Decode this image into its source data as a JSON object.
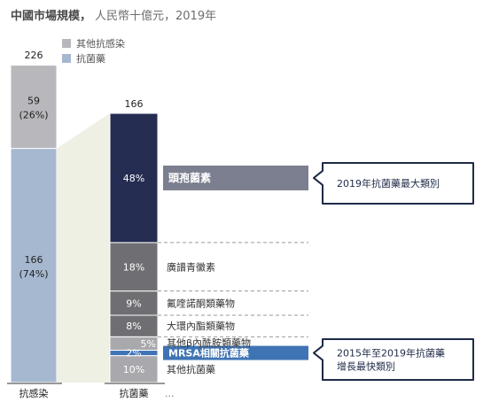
{
  "chart_data": {
    "type": "bar",
    "title": "中國市場規模，",
    "subtitle": "人民幣十億元，2019年",
    "colors": {
      "others": "#b7b7bc",
      "antibacterial": "#a6b8d0",
      "cephalosporin": "#252d52",
      "gray_seg": "#6f6f73",
      "light_seg": "#a8a8ad",
      "mrsa": "#3f74b4",
      "label_band": "#7b7f8f",
      "callout_border": "#1e2a48"
    },
    "legend": [
      {
        "name": "其他抗感染",
        "color": "#b7b7bc"
      },
      {
        "name": "抗菌藥",
        "color": "#a6b8d0"
      }
    ],
    "left_bar": {
      "label": "抗感染",
      "total": 226,
      "total_label": "226",
      "segments": [
        {
          "name": "抗菌藥",
          "value": 166,
          "label_value": "166",
          "label_pct": "(74%)"
        },
        {
          "name": "其他抗感染",
          "value": 59,
          "label_value": "59",
          "label_pct": "(26%)"
        }
      ]
    },
    "right_bar": {
      "label": "抗菌藥",
      "total": 166,
      "total_label": "166",
      "segments": [
        {
          "name": "其他抗菌藥",
          "pct": 10,
          "label": "10%"
        },
        {
          "name": "MRSA相關抗菌藥",
          "pct": 2,
          "label": "2%"
        },
        {
          "name": "其他β內酰胺類藥物",
          "pct": 5,
          "label": "5%"
        },
        {
          "name": "大環內酯類藥物",
          "pct": 8,
          "label": "8%"
        },
        {
          "name": "氟喹諾酮類藥物",
          "pct": 9,
          "label": "9%"
        },
        {
          "name": "廣譜青黴素",
          "pct": 18,
          "label": "18%"
        },
        {
          "name": "頭孢菌素",
          "pct": 48,
          "label": "48%"
        }
      ],
      "more_label": "..."
    },
    "callouts": [
      {
        "text_lines": [
          "2019年抗菌藥最大類別"
        ]
      },
      {
        "text_lines": [
          "2015年至2019年抗菌藥",
          "增長最快類別"
        ]
      }
    ]
  }
}
